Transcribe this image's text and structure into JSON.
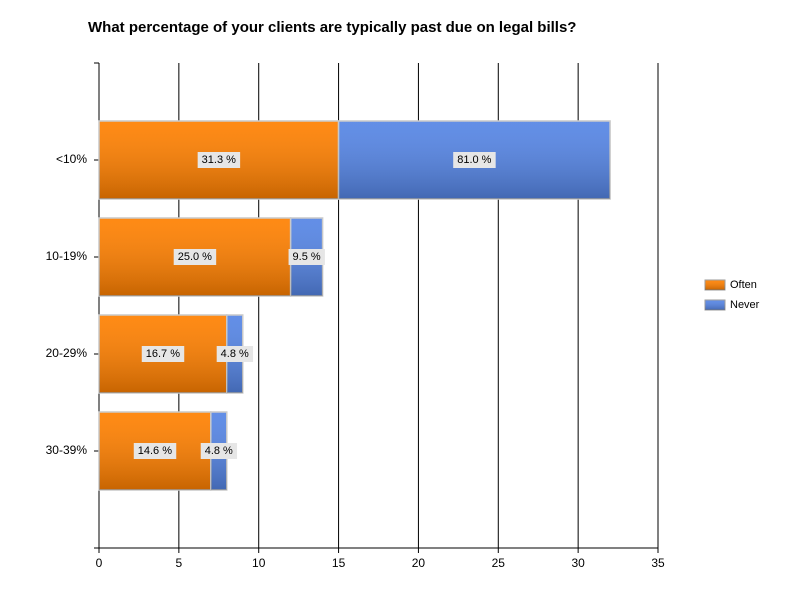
{
  "chart_data": {
    "type": "stacked-barh",
    "title": "What percentage of your clients are typically past due on legal bills?",
    "categories": [
      "<10%",
      "10-19%",
      "20-29%",
      "30-39%"
    ],
    "series": [
      {
        "name": "Often",
        "color": "#ff8000",
        "values": [
          15,
          12,
          8,
          7
        ],
        "value_labels": [
          "31.3 %",
          "25.0 %",
          "16.7 %",
          "14.6 %"
        ]
      },
      {
        "name": "Never",
        "color": "#5585e5",
        "values": [
          17,
          2,
          1,
          1
        ],
        "value_labels": [
          "81.0 %",
          "9.5 %",
          "4.8 %",
          "4.8 %"
        ]
      }
    ],
    "xlim": [
      0,
      35
    ],
    "xticks": [
      0,
      5,
      10,
      15,
      20,
      25,
      30,
      35
    ],
    "grid": true,
    "legend": "right"
  }
}
